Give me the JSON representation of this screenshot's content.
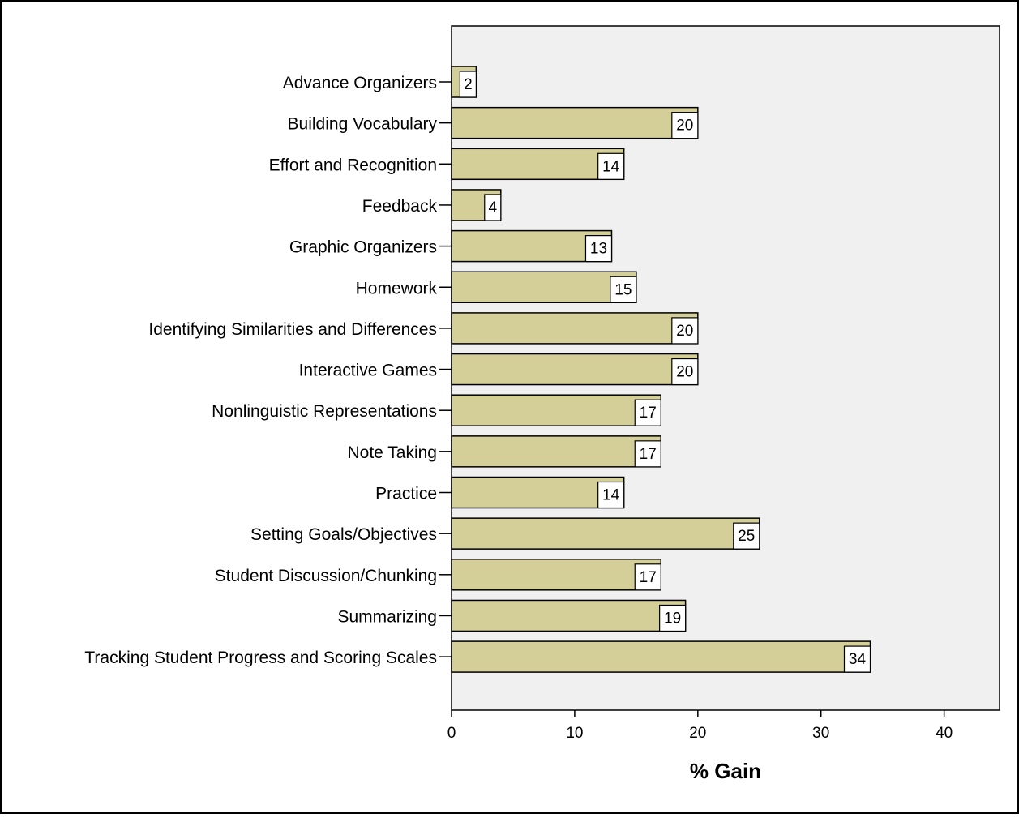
{
  "chart_data": {
    "type": "bar",
    "orientation": "horizontal",
    "categories": [
      "Advance Organizers",
      "Building Vocabulary",
      "Effort and Recognition",
      "Feedback",
      "Graphic Organizers",
      "Homework",
      "Identifying Similarities and Differences",
      "Interactive Games",
      "Nonlinguistic Representations",
      "Note Taking",
      "Practice",
      "Setting Goals/Objectives",
      "Student Discussion/Chunking",
      "Summarizing",
      "Tracking Student Progress and Scoring Scales"
    ],
    "values": [
      2,
      20,
      14,
      4,
      13,
      15,
      20,
      20,
      17,
      17,
      14,
      25,
      17,
      19,
      34
    ],
    "title": "",
    "xlabel": "% Gain",
    "ylabel": "",
    "xlim": [
      0,
      44.5
    ],
    "xticks": [
      0,
      10,
      20,
      30,
      40
    ],
    "grid": false,
    "data_labels": true,
    "colors": {
      "bar_fill": "#d4ce98",
      "bar_stroke": "#000000",
      "plot_background": "#f0f0f0",
      "label_box": "#ffffff"
    }
  }
}
